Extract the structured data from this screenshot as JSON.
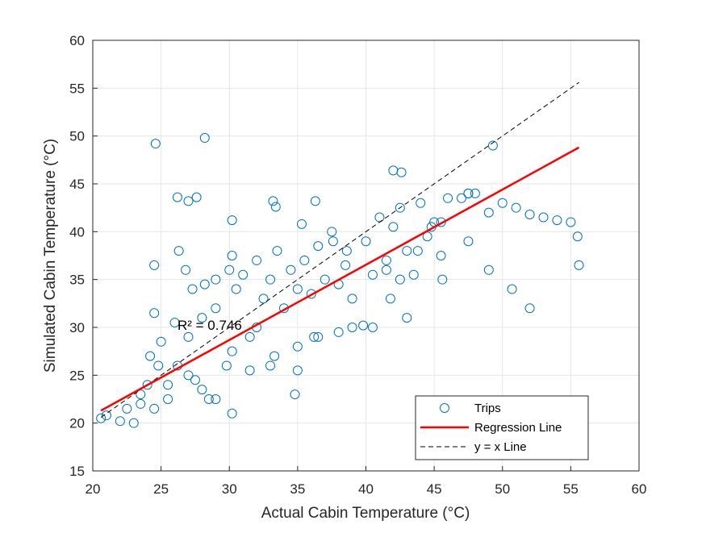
{
  "chart_data": {
    "type": "scatter",
    "title": "",
    "xlabel": "Actual Cabin Temperature (°C)",
    "ylabel": "Simulated Cabin Temperature (°C)",
    "xlim": [
      20,
      60
    ],
    "ylim": [
      15,
      60
    ],
    "xticks": [
      20,
      25,
      30,
      35,
      40,
      45,
      50,
      55,
      60
    ],
    "yticks": [
      15,
      20,
      25,
      30,
      35,
      40,
      45,
      50,
      55,
      60
    ],
    "grid": true,
    "legend_position": "bottom-right",
    "annotation": "R² = 0.746",
    "colors": {
      "trips": "#0072BD",
      "regression": "#FF0000",
      "identity": "#000000"
    },
    "series": [
      {
        "name": "Trips",
        "type": "scatter",
        "marker": "open-circle",
        "x": [
          20.6,
          21.0,
          22.0,
          23.0,
          23.5,
          24.0,
          24.2,
          24.5,
          24.5,
          24.8,
          25.0,
          25.5,
          26.0,
          26.2,
          26.3,
          26.8,
          27.0,
          27.3,
          27.5,
          28.0,
          28.2,
          28.5,
          29.0,
          29.0,
          29.8,
          30.0,
          30.2,
          30.5,
          31.0,
          31.5,
          32.0,
          32.0,
          32.5,
          33.0,
          33.3,
          33.5,
          34.0,
          34.5,
          35.0,
          35.0,
          35.5,
          36.0,
          36.2,
          36.5,
          37.0,
          37.5,
          38.0,
          38.5,
          39.0,
          40.0,
          40.5,
          41.0,
          41.5,
          41.8,
          42.0,
          42.5,
          43.0,
          43.5,
          44.0,
          44.5,
          45.0,
          45.5,
          46.0,
          47.0,
          47.5,
          48.0,
          49.0,
          49.3,
          50.0,
          51.0,
          52.0,
          53.0,
          54.0,
          55.0,
          55.5,
          55.6,
          52.0,
          50.7,
          49.0,
          47.5,
          45.5,
          43.8,
          42.5,
          41.5,
          40.5,
          39.0,
          38.0,
          36.5,
          35.0,
          34.8,
          33.0,
          31.5,
          30.2,
          29.0,
          28.0,
          27.0,
          25.5,
          24.5,
          23.5,
          22.5,
          24.6,
          28.2,
          26.2,
          27.0,
          27.6,
          33.2,
          33.4,
          36.3,
          42.0,
          42.6,
          47.5,
          44.8,
          38.6,
          35.3,
          30.2,
          30.2,
          37.6,
          43.0,
          39.8,
          45.6
        ],
        "y": [
          20.5,
          20.8,
          20.2,
          20.0,
          22.0,
          24.0,
          27.0,
          31.5,
          36.5,
          26.0,
          28.5,
          24.0,
          30.5,
          26.0,
          38.0,
          36.0,
          29.0,
          34.0,
          24.5,
          31.0,
          34.5,
          22.5,
          32.0,
          35.0,
          26.0,
          36.0,
          27.5,
          34.0,
          35.5,
          29.0,
          37.0,
          30.0,
          33.0,
          35.0,
          27.0,
          38.0,
          32.0,
          36.0,
          34.0,
          25.5,
          37.0,
          33.5,
          29.0,
          38.5,
          35.0,
          40.0,
          34.5,
          36.5,
          33.0,
          39.0,
          35.5,
          41.5,
          37.0,
          33.0,
          40.5,
          42.5,
          38.0,
          35.5,
          43.0,
          39.5,
          41.0,
          37.5,
          43.5,
          43.5,
          44.0,
          44.0,
          42.0,
          49.0,
          43.0,
          42.5,
          41.8,
          41.5,
          41.2,
          41.0,
          39.5,
          36.5,
          32.0,
          34.0,
          36.0,
          39.0,
          41.0,
          38.0,
          35.0,
          36.0,
          30.0,
          30.0,
          29.5,
          29.0,
          28.0,
          23.0,
          26.0,
          25.5,
          21.0,
          22.5,
          23.5,
          25.0,
          22.5,
          21.5,
          23.0,
          21.5,
          49.2,
          49.8,
          43.6,
          43.2,
          43.6,
          43.2,
          42.6,
          43.2,
          46.4,
          46.2,
          44.0,
          40.5,
          38.0,
          40.8,
          41.2,
          37.5,
          39.0,
          31.0,
          30.2,
          35.0
        ]
      },
      {
        "name": "Regression Line",
        "type": "line",
        "x": [
          20.6,
          55.6
        ],
        "y": [
          21.3,
          48.8
        ]
      },
      {
        "name": "y = x Line",
        "type": "line",
        "style": "dashed",
        "x": [
          20.6,
          55.6
        ],
        "y": [
          20.6,
          55.6
        ]
      }
    ]
  }
}
